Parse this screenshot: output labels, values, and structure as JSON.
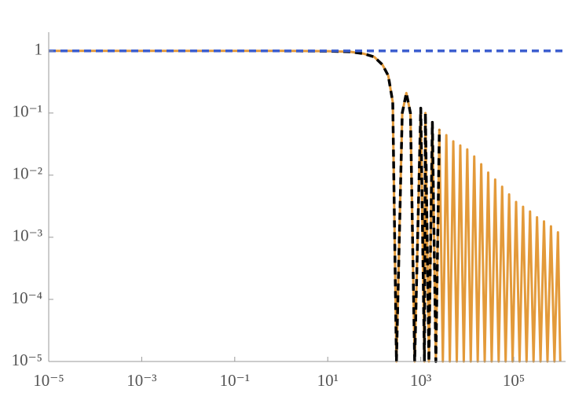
{
  "chart_data": {
    "type": "line",
    "xscale": "log",
    "yscale": "log",
    "xlim": [
      1e-05,
      1300000
    ],
    "ylim": [
      1e-05,
      2
    ],
    "xticks": [
      {
        "value": 1e-05,
        "label": "10⁻⁵"
      },
      {
        "value": 0.001,
        "label": "10⁻³"
      },
      {
        "value": 0.1,
        "label": "10⁻¹"
      },
      {
        "value": 10,
        "label": "10¹"
      },
      {
        "value": 1000,
        "label": "10³"
      },
      {
        "value": 100000,
        "label": "10⁵"
      }
    ],
    "yticks": [
      {
        "value": 1e-05,
        "label": "10⁻⁵"
      },
      {
        "value": 0.0001,
        "label": "10⁻⁴"
      },
      {
        "value": 0.001,
        "label": "10⁻³"
      },
      {
        "value": 0.01,
        "label": "10⁻²"
      },
      {
        "value": 0.1,
        "label": "10⁻¹"
      },
      1
    ],
    "series": [
      {
        "color": "#e39a3a",
        "dashed": false,
        "x": [
          1e-05,
          0.001,
          0.1,
          1,
          10,
          30,
          60,
          100,
          150,
          200,
          250,
          300,
          400,
          490,
          600,
          740,
          1000,
          1200,
          1259,
          1496,
          1778,
          2113,
          2512,
          2985,
          3548,
          4217,
          5012,
          5957,
          7079,
          8414,
          10000,
          11885,
          14125,
          16788,
          19953,
          23714,
          28184,
          33497,
          39811,
          47315,
          56234,
          66834,
          79433,
          94406,
          112202,
          133352,
          158489,
          188365,
          223872,
          266073,
          316228,
          375837,
          446684,
          530884,
          630957,
          749894,
          891251,
          1000000
        ],
        "values": [
          1,
          1,
          1,
          1,
          0.99,
          0.97,
          0.9,
          0.8,
          0.6,
          0.4,
          0.15,
          1e-05,
          0.1,
          0.21,
          0.1,
          1e-05,
          0.12,
          1e-05,
          0.1,
          1e-05,
          0.071,
          1e-05,
          0.054,
          1e-05,
          0.044,
          1e-05,
          0.035,
          1e-05,
          0.03,
          1e-05,
          0.026,
          1e-05,
          0.02,
          1e-05,
          0.015,
          1e-05,
          0.011,
          1e-05,
          0.0085,
          1e-05,
          0.0065,
          1e-05,
          0.0049,
          1e-05,
          0.0037,
          1e-05,
          0.0031,
          1e-05,
          0.0026,
          1e-05,
          0.0021,
          1e-05,
          0.0018,
          1e-05,
          0.0015,
          1e-05,
          0.0012,
          1e-05
        ]
      },
      {
        "color": "#000000",
        "dashed": true,
        "x": [
          1e-05,
          0.001,
          0.1,
          1,
          10,
          30,
          60,
          100,
          150,
          200,
          250,
          300,
          400,
          490,
          600,
          740,
          1000,
          1200,
          1259,
          1496,
          1778,
          2113,
          2512
        ],
        "values": [
          1,
          1,
          1,
          1,
          0.99,
          0.97,
          0.9,
          0.8,
          0.6,
          0.4,
          0.15,
          1e-05,
          0.1,
          0.21,
          0.1,
          1e-05,
          0.12,
          1e-05,
          0.1,
          1e-05,
          0.071,
          1e-05,
          0.054
        ]
      },
      {
        "color": "#3d5fcf",
        "dashed": true,
        "x": [
          1e-05,
          1200000
        ],
        "values": [
          1,
          1
        ]
      }
    ]
  }
}
